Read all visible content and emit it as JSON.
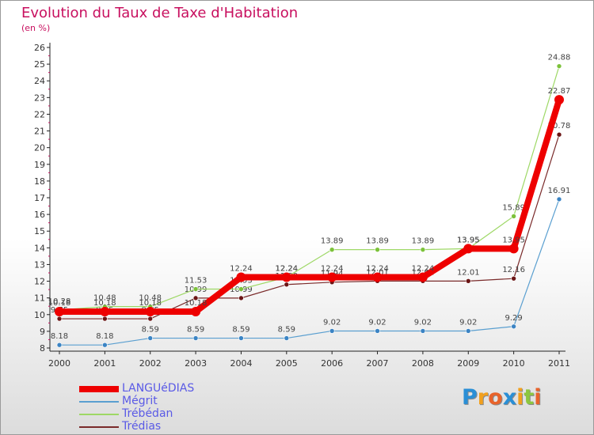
{
  "title": "Evolution du Taux de Taxe d'Habitation",
  "subtitle": "(en %)",
  "logo": {
    "text": "Proxiti",
    "letters": [
      {
        "ch": "P",
        "color": "#2a8fd6"
      },
      {
        "ch": "r",
        "color": "#f2a01e"
      },
      {
        "ch": "o",
        "color": "#e8632b"
      },
      {
        "ch": "x",
        "color": "#2a8fd6"
      },
      {
        "ch": "i",
        "color": "#f2a01e"
      },
      {
        "ch": "t",
        "color": "#8cc63f"
      },
      {
        "ch": "i",
        "color": "#e8632b"
      }
    ]
  },
  "chart_data": {
    "type": "line",
    "title": "Evolution du Taux de Taxe d'Habitation",
    "ylabel": "(en %)",
    "xlabel": "",
    "x": [
      "2000",
      "2001",
      "2002",
      "2003",
      "2004",
      "2005",
      "2006",
      "2007",
      "2008",
      "2009",
      "2010",
      "2011"
    ],
    "ylim": [
      8,
      26
    ],
    "yticks": [
      8,
      9,
      10,
      11,
      12,
      13,
      14,
      15,
      16,
      17,
      18,
      19,
      20,
      21,
      22,
      23,
      24,
      25,
      26
    ],
    "grid": false,
    "legend_position": "bottom-left",
    "series": [
      {
        "name": "Mégrit",
        "color": "#5a9fd0",
        "marker": "#3b84c4",
        "width": 1.2,
        "values": [
          8.18,
          8.18,
          8.59,
          8.59,
          8.59,
          8.59,
          9.02,
          9.02,
          9.02,
          9.02,
          9.29,
          16.91
        ],
        "labels": [
          "8.18",
          "8.18",
          "8.59",
          "8.59",
          "8.59",
          "8.59",
          "9.02",
          "9.02",
          "9.02",
          "9.02",
          "9.29",
          "16.91"
        ]
      },
      {
        "name": "Trédias",
        "color": "#7a2a2a",
        "marker": "#6b1515",
        "width": 1.2,
        "values": [
          9.75,
          9.75,
          9.75,
          10.99,
          10.99,
          11.8,
          11.94,
          12.01,
          12.01,
          12.01,
          12.16,
          20.78
        ],
        "labels": [
          "9.75",
          "9.75",
          "9.75",
          "10.99",
          "10.99",
          "11.80",
          "11.94",
          "12.01",
          "12.01",
          "12.01",
          "12.16",
          "20.78"
        ]
      },
      {
        "name": "Trébédan",
        "color": "#9ed866",
        "marker": "#7cc23a",
        "width": 1.2,
        "values": [
          10.28,
          10.48,
          10.48,
          11.53,
          11.53,
          12.24,
          13.89,
          13.89,
          13.89,
          13.95,
          15.89,
          24.88
        ],
        "labels": [
          "10.28",
          "10.48",
          "10.48",
          "11.53",
          "11.53",
          "12.24",
          "13.89",
          "13.89",
          "13.89",
          "13.95",
          "15.89",
          "24.88"
        ]
      },
      {
        "name": "LANGUéDIAS",
        "color": "#ee0000",
        "marker": "#ee0000",
        "width": 8,
        "values": [
          10.18,
          10.18,
          10.18,
          10.18,
          12.24,
          12.24,
          12.24,
          12.24,
          12.24,
          13.95,
          13.95,
          22.87
        ],
        "labels": [
          "10.18",
          "10.18",
          "10.18",
          "10.18",
          "12.24",
          "12.24",
          "12.24",
          "12.24",
          "12.24",
          "13.95",
          "13.95",
          "22.87"
        ]
      }
    ],
    "legend": [
      "LANGUéDIAS",
      "Mégrit",
      "Trébédan",
      "Trédias"
    ]
  }
}
